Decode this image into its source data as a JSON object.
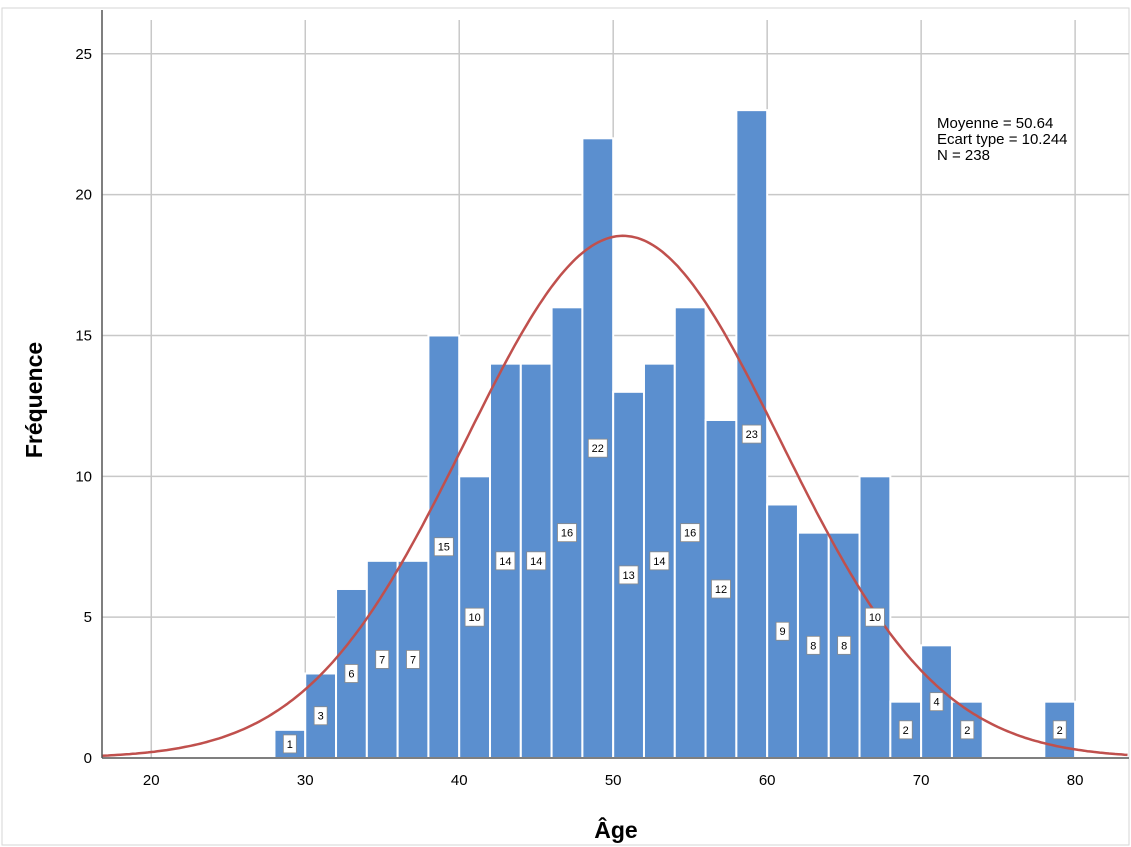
{
  "chart_data": {
    "type": "bar",
    "subtype": "histogram",
    "xlabel": "Âge",
    "ylabel": "Fréquence",
    "xlim": [
      16.8,
      83.5
    ],
    "ylim": [
      0,
      26.2
    ],
    "x_ticks": [
      20,
      30,
      40,
      50,
      60,
      70,
      80
    ],
    "y_ticks": [
      0,
      5,
      10,
      15,
      20,
      25
    ],
    "grid": true,
    "bin_width": 2,
    "bars": [
      {
        "x": 29,
        "value": 1
      },
      {
        "x": 31,
        "value": 3
      },
      {
        "x": 33,
        "value": 6
      },
      {
        "x": 35,
        "value": 7
      },
      {
        "x": 37,
        "value": 7
      },
      {
        "x": 39,
        "value": 15
      },
      {
        "x": 41,
        "value": 10
      },
      {
        "x": 43,
        "value": 14
      },
      {
        "x": 45,
        "value": 14
      },
      {
        "x": 47,
        "value": 16
      },
      {
        "x": 49,
        "value": 22
      },
      {
        "x": 51,
        "value": 13
      },
      {
        "x": 53,
        "value": 14
      },
      {
        "x": 55,
        "value": 16
      },
      {
        "x": 57,
        "value": 12
      },
      {
        "x": 59,
        "value": 23
      },
      {
        "x": 61,
        "value": 9
      },
      {
        "x": 63,
        "value": 8
      },
      {
        "x": 65,
        "value": 8
      },
      {
        "x": 67,
        "value": 10
      },
      {
        "x": 69,
        "value": 2
      },
      {
        "x": 71,
        "value": 4
      },
      {
        "x": 73,
        "value": 2
      },
      {
        "x": 79,
        "value": 2
      }
    ],
    "normal_curve": {
      "mean": 50.64,
      "sd": 10.244,
      "n": 238,
      "color": "#c0504d"
    },
    "stats_lines": [
      "Moyenne = 50.64",
      "Ecart type = 10.244",
      "N = 238"
    ],
    "colors": {
      "bar": "#5b8fcf",
      "bar_edge": "#ffffff",
      "grid": "#c8c8c8",
      "axis": "#555555"
    }
  }
}
